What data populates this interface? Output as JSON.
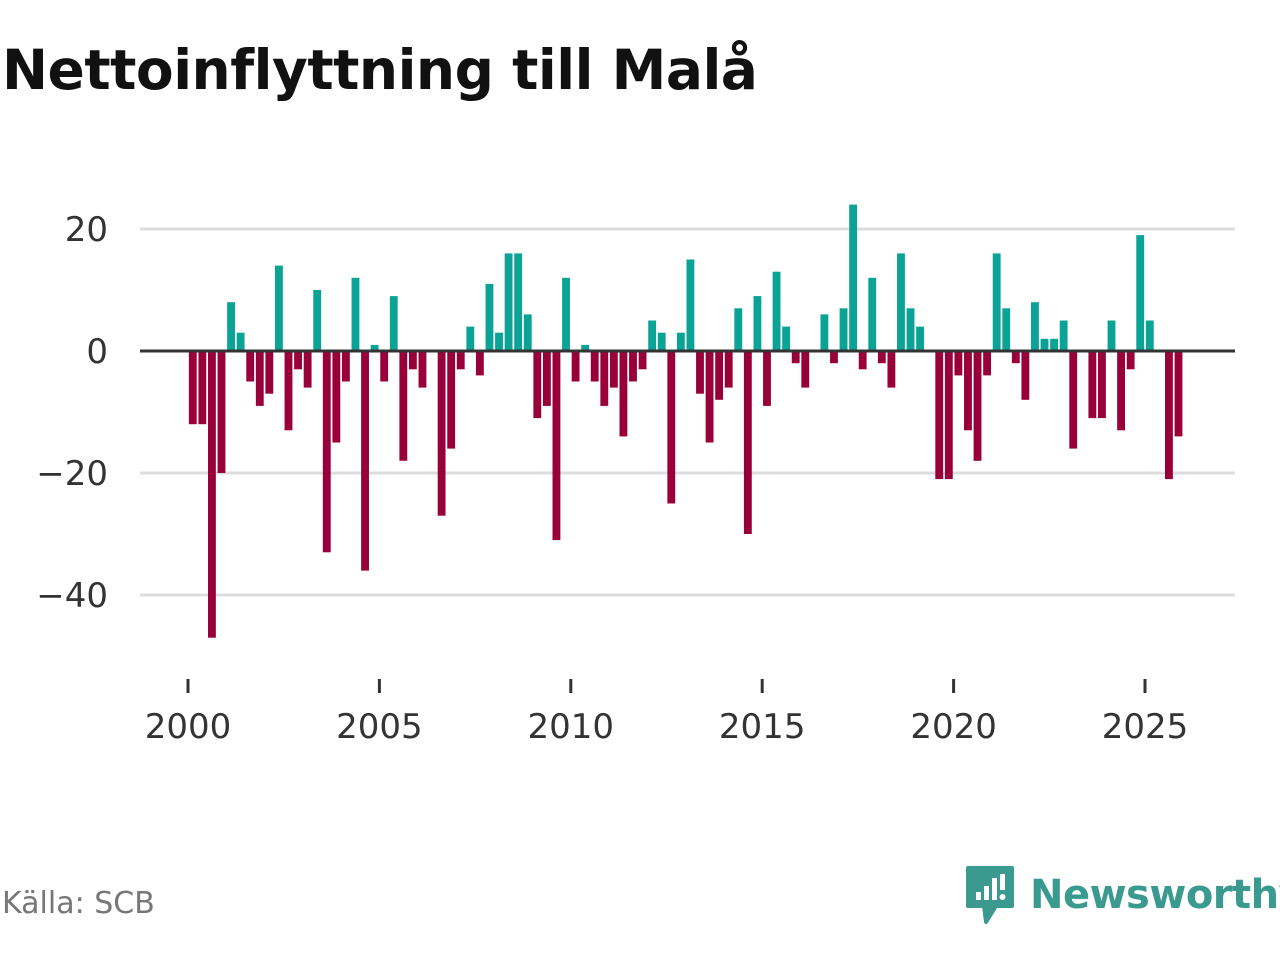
{
  "colors": {
    "positive": "#0aa396",
    "negative": "#990039",
    "grid": "#dddddd",
    "zero": "#333333",
    "brand": "#3a9a8f"
  },
  "source": "Källa: SCB",
  "brand": {
    "name": "Newsworthy"
  },
  "chart_data": {
    "type": "bar",
    "title": "Nettoinflyttning till Malå",
    "xlabel": "",
    "ylabel": "",
    "ylim": [
      -50,
      30
    ],
    "yticks": [
      20,
      0,
      -20,
      -40
    ],
    "ytick_labels": [
      "20",
      "0",
      "−20",
      "−40"
    ],
    "xlim": [
      1999.3,
      2027.2
    ],
    "xticks": [
      2000,
      2005,
      2010,
      2015,
      2020,
      2025
    ],
    "xtick_labels": [
      "2000",
      "2005",
      "2010",
      "2015",
      "2020",
      "2025"
    ],
    "grid": true,
    "period": "quarterly",
    "start": 2000,
    "values": [
      -12,
      -12,
      -47,
      -20,
      8,
      3,
      -5,
      -9,
      -7,
      14,
      -13,
      -3,
      -6,
      10,
      -33,
      -15,
      -5,
      12,
      -36,
      1,
      -5,
      9,
      -18,
      -3,
      -6,
      0,
      -27,
      -16,
      -3,
      4,
      -4,
      11,
      3,
      16,
      16,
      6,
      -11,
      -9,
      -31,
      12,
      -5,
      1,
      -5,
      -9,
      -6,
      -14,
      -5,
      -3,
      5,
      3,
      -25,
      3,
      15,
      -7,
      -15,
      -8,
      -6,
      7,
      -30,
      9,
      -9,
      13,
      4,
      -2,
      -6,
      0,
      6,
      -2,
      7,
      24,
      -3,
      12,
      -2,
      -6,
      16,
      7,
      4,
      0,
      -21,
      -21,
      -4,
      -13,
      -18,
      -4,
      16,
      7,
      -2,
      -8,
      8,
      2,
      2,
      5,
      -16,
      0,
      -11,
      -11,
      5,
      -13,
      -3,
      19,
      5,
      0,
      -21,
      -14
    ]
  }
}
